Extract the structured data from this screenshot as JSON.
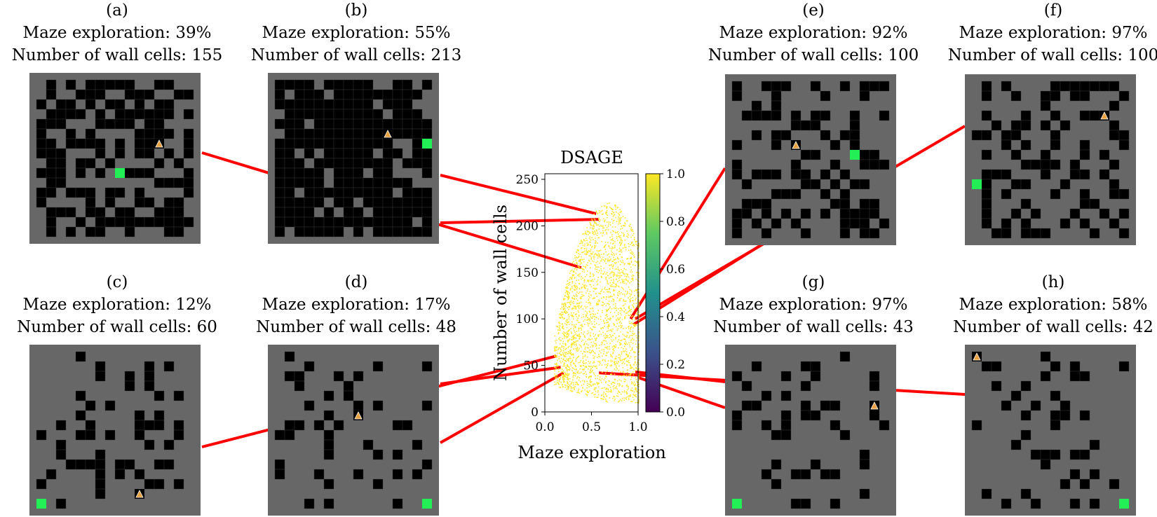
{
  "figure": {
    "panels": [
      {
        "label": "(a)",
        "line1": "Maze exploration: 39%",
        "line2": "Number of wall cells: 155"
      },
      {
        "label": "(b)",
        "line1": "Maze exploration: 55%",
        "line2": "Number of wall cells: 213"
      },
      {
        "label": "(c)",
        "line1": "Maze exploration: 12%",
        "line2": "Number of wall cells: 60"
      },
      {
        "label": "(d)",
        "line1": "Maze exploration: 17%",
        "line2": "Number of wall cells: 48"
      },
      {
        "label": "(e)",
        "line1": "Maze exploration: 92%",
        "line2": "Number of wall cells: 100"
      },
      {
        "label": "(f)",
        "line1": "Maze exploration: 97%",
        "line2": "Number of wall cells: 100"
      },
      {
        "label": "(g)",
        "line1": "Maze exploration: 97%",
        "line2": "Number of wall cells: 43"
      },
      {
        "label": "(h)",
        "line1": "Maze exploration: 58%",
        "line2": "Number of wall cells: 42"
      }
    ]
  },
  "chart_data": {
    "type": "scatter",
    "title": "DSAGE",
    "xlabel": "Maze exploration",
    "ylabel": "Number of wall cells",
    "xlim": [
      0.0,
      1.0
    ],
    "ylim": [
      0,
      256
    ],
    "xticks": [
      "0.0",
      "0.5",
      "1.0"
    ],
    "yticks": [
      "0",
      "50",
      "100",
      "150",
      "200",
      "250"
    ],
    "colorbar": {
      "ticks": [
        "0.0",
        "0.2",
        "0.4",
        "0.6",
        "0.8",
        "1.0"
      ],
      "range": [
        0.0,
        1.0
      ],
      "colormap": "viridis"
    },
    "point_color": "#fde725",
    "density_region": {
      "x_range": [
        0.1,
        1.0
      ],
      "y_range": [
        10,
        225
      ]
    },
    "highlighted_points": [
      {
        "panel": "(a)",
        "x": 0.39,
        "y": 155
      },
      {
        "panel": "(b)",
        "x": 0.55,
        "y": 213
      },
      {
        "panel": "(c)",
        "x": 0.12,
        "y": 60
      },
      {
        "panel": "(d)",
        "x": 0.17,
        "y": 48
      },
      {
        "panel": "(e)",
        "x": 0.92,
        "y": 100
      },
      {
        "panel": "(f)",
        "x": 0.97,
        "y": 100
      },
      {
        "panel": "(g)",
        "x": 0.97,
        "y": 43
      },
      {
        "panel": "(h)",
        "x": 0.58,
        "y": 42
      }
    ],
    "grid": false
  },
  "colors": {
    "maze_bg": "#676767",
    "wall": "#000000",
    "goal": "#22ee55",
    "agent": "#e8a040",
    "connector": "#ff0000"
  }
}
